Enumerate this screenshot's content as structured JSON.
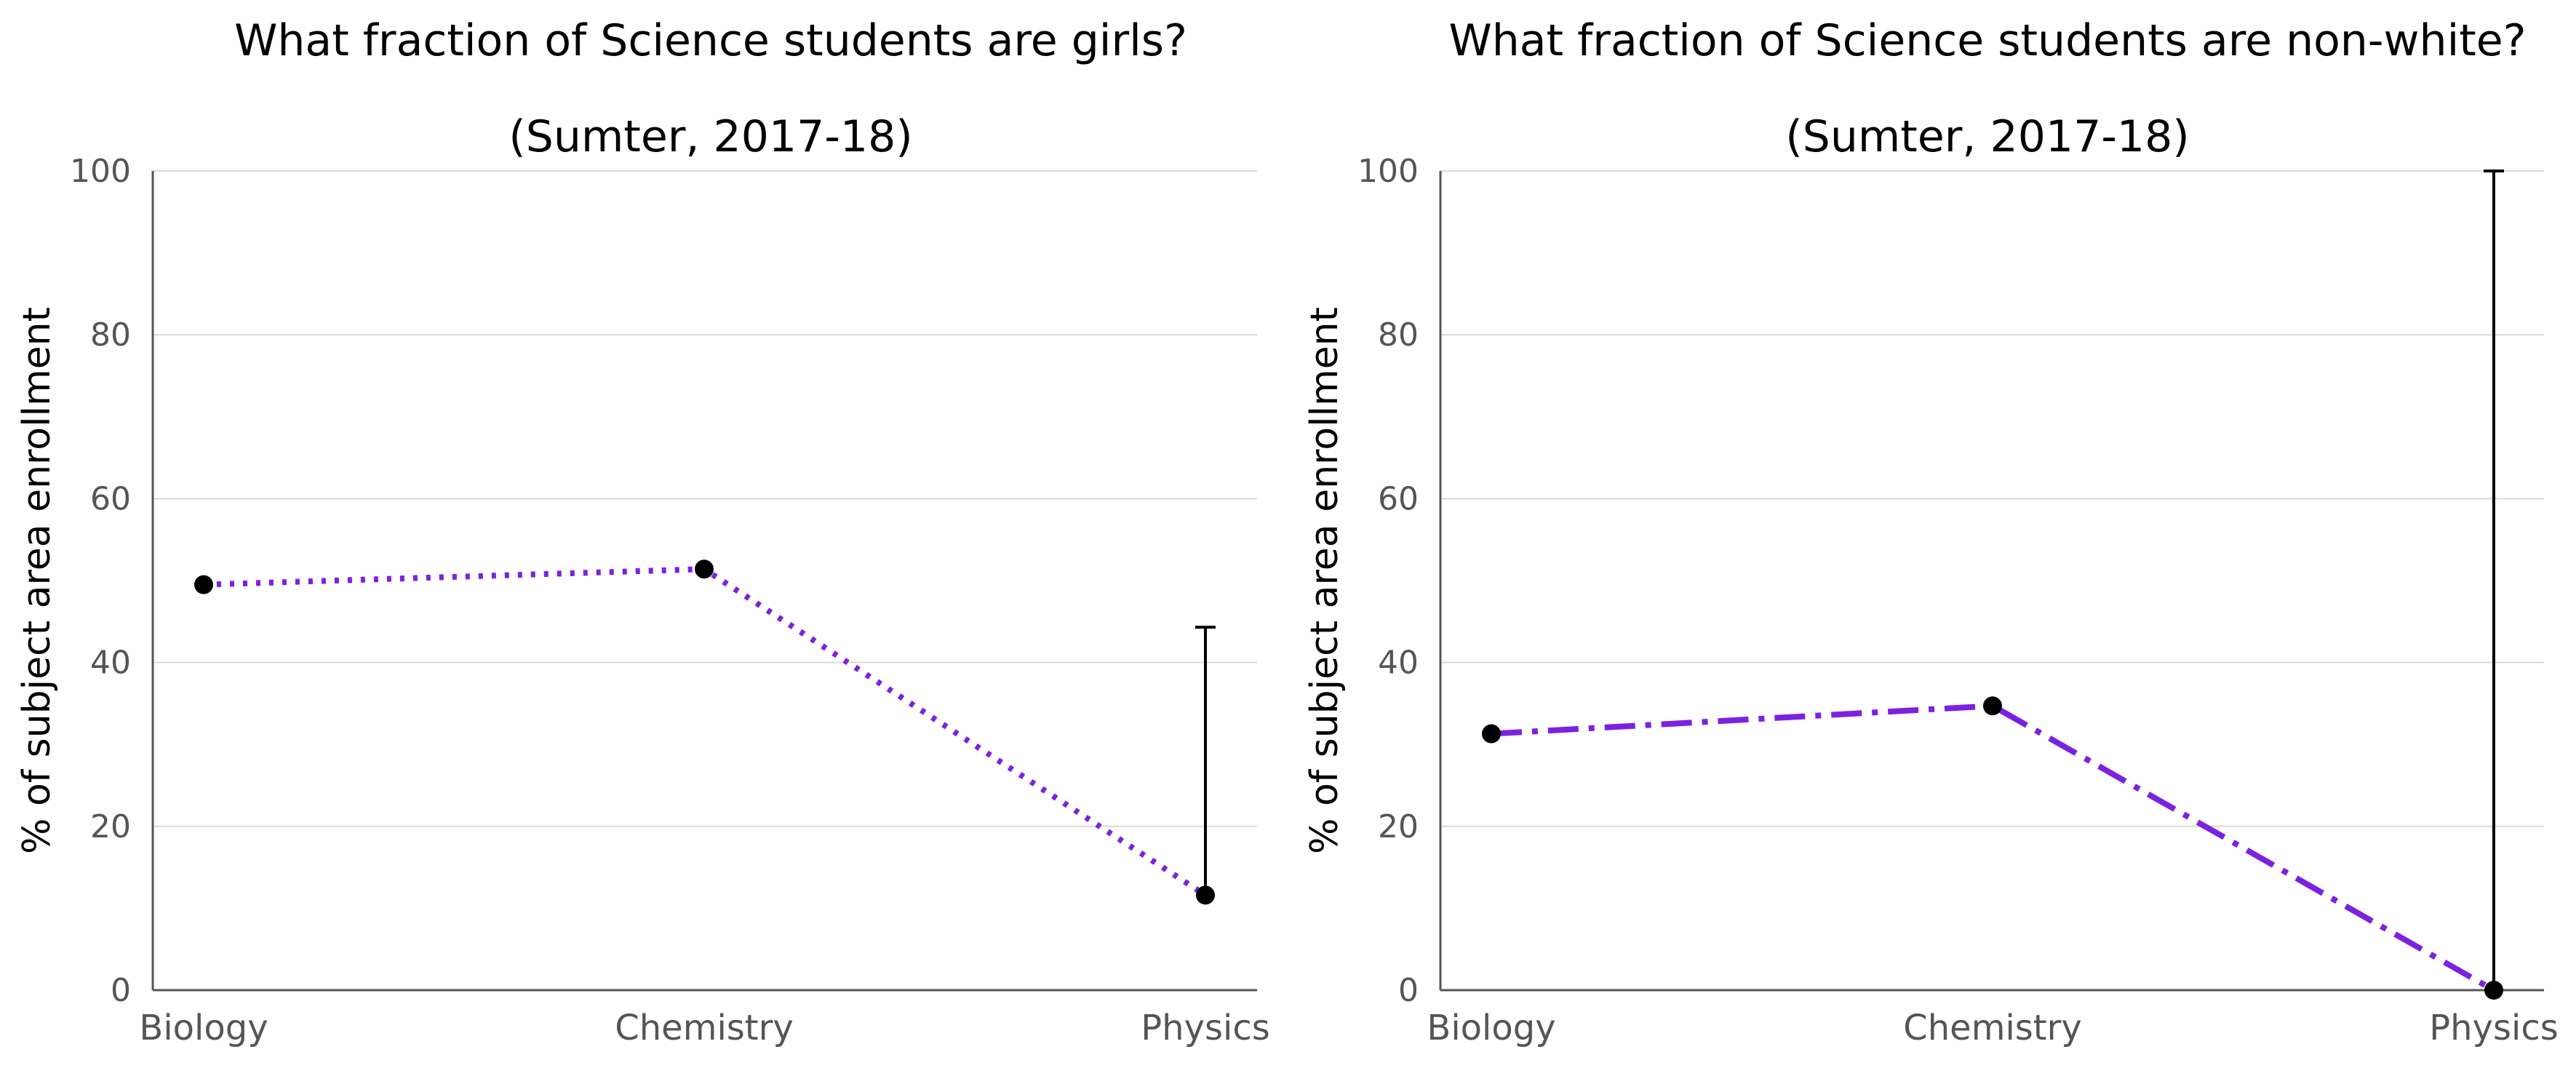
{
  "chart_data": [
    {
      "type": "line",
      "title": "What fraction of Science students are girls?",
      "subtitle": "(Sumter, 2017-18)",
      "xlabel": "",
      "ylabel": "% of subject area enrollment",
      "categories": [
        "Biology",
        "Chemistry",
        "Physics"
      ],
      "values": [
        49.5,
        51.4,
        11.6
      ],
      "error_bars": [
        null,
        null,
        {
          "low": 11.6,
          "high": 44.3
        }
      ],
      "ylim": [
        0,
        100
      ],
      "yticks": [
        "0",
        "20",
        "40",
        "60",
        "80",
        "100"
      ],
      "line_style": "dotted",
      "line_color": "#7b22e0",
      "marker_color": "#000000",
      "grid": true
    },
    {
      "type": "line",
      "title": "What fraction of Science students are non-white?",
      "subtitle": "(Sumter, 2017-18)",
      "xlabel": "",
      "ylabel": "% of subject area enrollment",
      "categories": [
        "Biology",
        "Chemistry",
        "Physics"
      ],
      "values": [
        31.3,
        34.7,
        0.0
      ],
      "error_bars": [
        null,
        null,
        {
          "low": 0.0,
          "high": 100.0
        }
      ],
      "ylim": [
        0,
        100
      ],
      "yticks": [
        "0",
        "20",
        "40",
        "60",
        "80",
        "100"
      ],
      "line_style": "dashdot",
      "line_color": "#7b22e0",
      "marker_color": "#000000",
      "grid": true
    }
  ]
}
